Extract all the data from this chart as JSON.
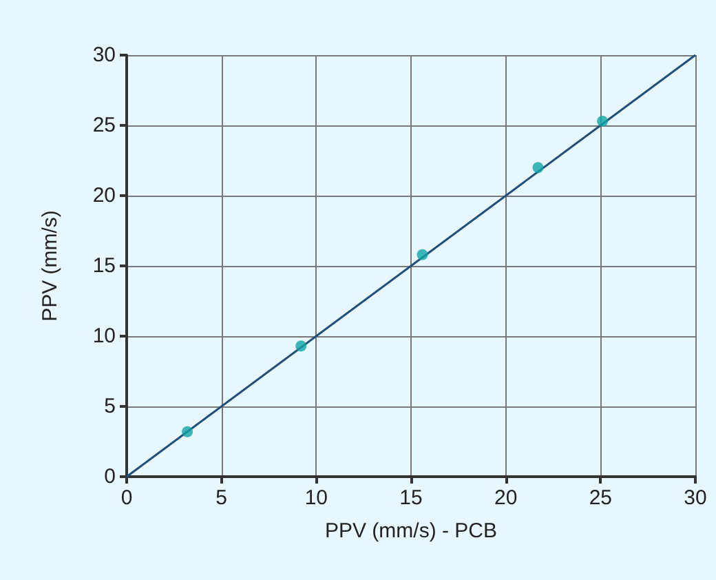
{
  "chart_data": {
    "type": "scatter",
    "xlabel": "PPV (mm/s) - PCB",
    "ylabel": "PPV (mm/s)",
    "xlim": [
      0,
      30
    ],
    "ylim": [
      0,
      30
    ],
    "xticks": [
      0,
      5,
      10,
      15,
      20,
      25,
      30
    ],
    "yticks": [
      0,
      5,
      10,
      15,
      20,
      25,
      30
    ],
    "grid": true,
    "marker": "circle",
    "series": [
      {
        "color": "#0fa5a5",
        "x": [
          3.2,
          9.2,
          15.6,
          21.7,
          25.1
        ],
        "values": [
          3.2,
          9.3,
          15.8,
          22.0,
          25.3
        ]
      },
      {
        "type": "line",
        "color": "#1f4e79",
        "marker": "none",
        "line_style": "solid",
        "x": [
          0,
          30
        ],
        "values": [
          0,
          30
        ]
      }
    ]
  }
}
